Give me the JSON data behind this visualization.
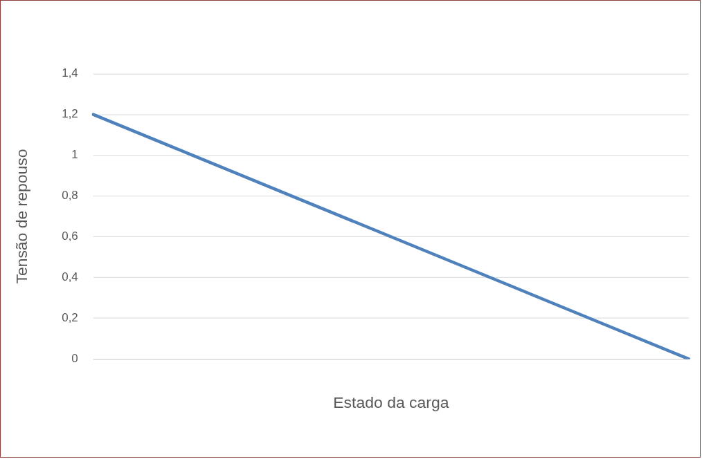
{
  "chart_data": {
    "type": "line",
    "xlabel": "Estado da carga",
    "ylabel": "Tensão de repouso",
    "categories": [
      null,
      null,
      null,
      null,
      null,
      null,
      null
    ],
    "series": [
      {
        "color": "#4f81bd",
        "values": [
          1.2,
          1.0,
          0.8,
          0.6,
          0.4,
          0.2,
          0
        ]
      }
    ],
    "ylim": [
      0,
      1.4
    ],
    "yticks": [
      {
        "value": 0,
        "label": "0"
      },
      {
        "value": 0.2,
        "label": "0,2"
      },
      {
        "value": 0.4,
        "label": "0,4"
      },
      {
        "value": 0.6,
        "label": "0,6"
      },
      {
        "value": 0.8,
        "label": "0,8"
      },
      {
        "value": 1,
        "label": "1"
      },
      {
        "value": 1.2,
        "label": "1,2"
      },
      {
        "value": 1.4,
        "label": "1,4"
      }
    ],
    "grid": "y",
    "legend": false,
    "marker": "none",
    "line_style": "solid"
  }
}
